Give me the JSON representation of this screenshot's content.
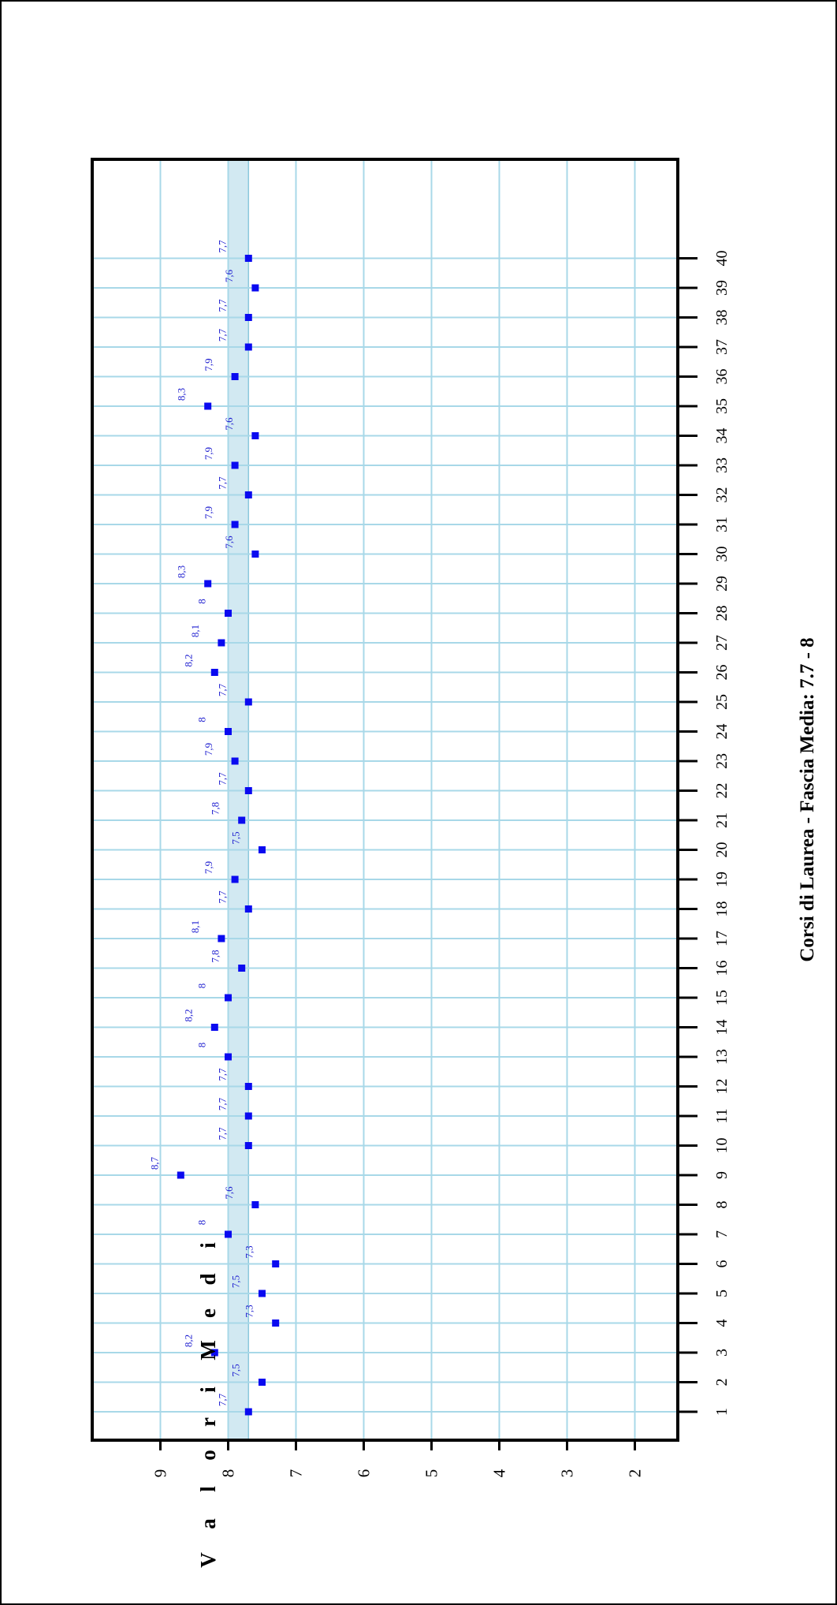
{
  "chart_data": {
    "type": "scatter",
    "title": "Corsi di Laurea - Fascia Media: 7.7 - 8",
    "ylabel_letters": [
      "V",
      "a",
      "l",
      "o",
      "r",
      "i",
      "M",
      "e",
      "d",
      "i"
    ],
    "x": [
      1,
      2,
      3,
      4,
      5,
      6,
      7,
      8,
      9,
      10,
      11,
      12,
      13,
      14,
      15,
      16,
      17,
      18,
      19,
      20,
      21,
      22,
      23,
      24,
      25,
      26,
      27,
      28,
      29,
      30,
      31,
      32,
      33,
      34,
      35,
      36,
      37,
      38,
      39,
      40
    ],
    "values": [
      7.7,
      7.5,
      8.2,
      7.3,
      7.5,
      7.3,
      8,
      7.6,
      8.7,
      7.7,
      7.7,
      7.7,
      8,
      8.2,
      8,
      7.8,
      8.1,
      7.7,
      7.9,
      7.5,
      7.8,
      7.7,
      7.9,
      8,
      7.7,
      8.2,
      8.1,
      8,
      8.3,
      7.6,
      7.9,
      7.7,
      7.9,
      7.6,
      8.3,
      7.9,
      7.7,
      7.7,
      7.6,
      7.7
    ],
    "value_labels": [
      "7,7",
      "7,5",
      "8,2",
      "7,3",
      "7,5",
      "7,3",
      "8",
      "7,6",
      "8,7",
      "7,7",
      "7,7",
      "7,7",
      "8",
      "8,2",
      "8",
      "7,8",
      "8,1",
      "7,7",
      "7,9",
      "7,5",
      "7,8",
      "7,7",
      "7,9",
      "8",
      "7,7",
      "8,2",
      "8,1",
      "8",
      "8,3",
      "7,6",
      "7,9",
      "7,7",
      "7,9",
      "7,6",
      "8,3",
      "7,9",
      "7,7",
      "7,7",
      "7,6",
      "7,7"
    ],
    "y_ticks": [
      9,
      8,
      7,
      6,
      5,
      4,
      3,
      2
    ],
    "ylim": [
      1.05,
      9.7
    ],
    "band": [
      7.7,
      8
    ],
    "orientation": "rotated-90-clockwise",
    "grid": true,
    "colors": {
      "points": "#0a0af0",
      "labels": "#2020d0",
      "band": "#d2e9f2",
      "grid": "#a8d8e8",
      "frame": "#000000"
    }
  }
}
